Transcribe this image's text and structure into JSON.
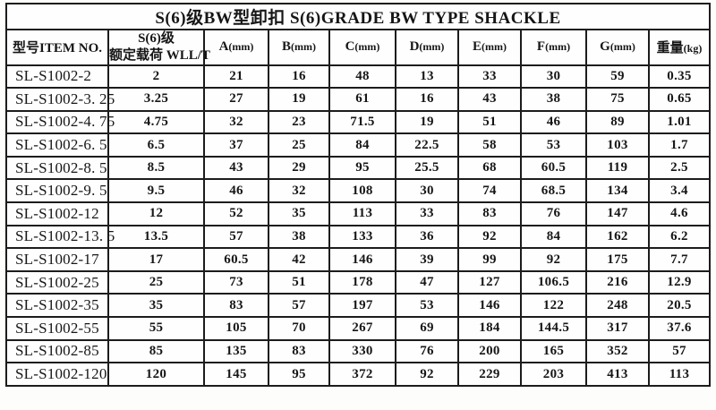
{
  "title": "S(6)级BW型卸扣 S(6)GRADE BW TYPE SHACKLE",
  "columns": [
    {
      "label": "型号ITEM NO."
    },
    {
      "label": "S(6)级",
      "label2": "额定载荷 WLL/T"
    },
    {
      "label": "A",
      "unit": "(mm)"
    },
    {
      "label": "B",
      "unit": "(mm)"
    },
    {
      "label": "C",
      "unit": "(mm)"
    },
    {
      "label": "D",
      "unit": "(mm)"
    },
    {
      "label": "E",
      "unit": "(mm)"
    },
    {
      "label": "F",
      "unit": "(mm)"
    },
    {
      "label": "G",
      "unit": "(mm)"
    },
    {
      "label": "重量",
      "unit": "(kg)"
    }
  ],
  "rows": [
    [
      "SL-S1002-2",
      "2",
      "21",
      "16",
      "48",
      "13",
      "33",
      "30",
      "59",
      "0.35"
    ],
    [
      "SL-S1002-3. 25",
      "3.25",
      "27",
      "19",
      "61",
      "16",
      "43",
      "38",
      "75",
      "0.65"
    ],
    [
      "SL-S1002-4. 75",
      "4.75",
      "32",
      "23",
      "71.5",
      "19",
      "51",
      "46",
      "89",
      "1.01"
    ],
    [
      "SL-S1002-6. 5",
      "6.5",
      "37",
      "25",
      "84",
      "22.5",
      "58",
      "53",
      "103",
      "1.7"
    ],
    [
      "SL-S1002-8. 5",
      "8.5",
      "43",
      "29",
      "95",
      "25.5",
      "68",
      "60.5",
      "119",
      "2.5"
    ],
    [
      "SL-S1002-9. 5",
      "9.5",
      "46",
      "32",
      "108",
      "30",
      "74",
      "68.5",
      "134",
      "3.4"
    ],
    [
      "SL-S1002-12",
      "12",
      "52",
      "35",
      "113",
      "33",
      "83",
      "76",
      "147",
      "4.6"
    ],
    [
      "SL-S1002-13. 5",
      "13.5",
      "57",
      "38",
      "133",
      "36",
      "92",
      "84",
      "162",
      "6.2"
    ],
    [
      "SL-S1002-17",
      "17",
      "60.5",
      "42",
      "146",
      "39",
      "99",
      "92",
      "175",
      "7.7"
    ],
    [
      "SL-S1002-25",
      "25",
      "73",
      "51",
      "178",
      "47",
      "127",
      "106.5",
      "216",
      "12.9"
    ],
    [
      "SL-S1002-35",
      "35",
      "83",
      "57",
      "197",
      "53",
      "146",
      "122",
      "248",
      "20.5"
    ],
    [
      "SL-S1002-55",
      "55",
      "105",
      "70",
      "267",
      "69",
      "184",
      "144.5",
      "317",
      "37.6"
    ],
    [
      "SL-S1002-85",
      "85",
      "135",
      "83",
      "330",
      "76",
      "200",
      "165",
      "352",
      "57"
    ],
    [
      "SL-S1002-120",
      "120",
      "145",
      "95",
      "372",
      "92",
      "229",
      "203",
      "413",
      "113"
    ]
  ]
}
